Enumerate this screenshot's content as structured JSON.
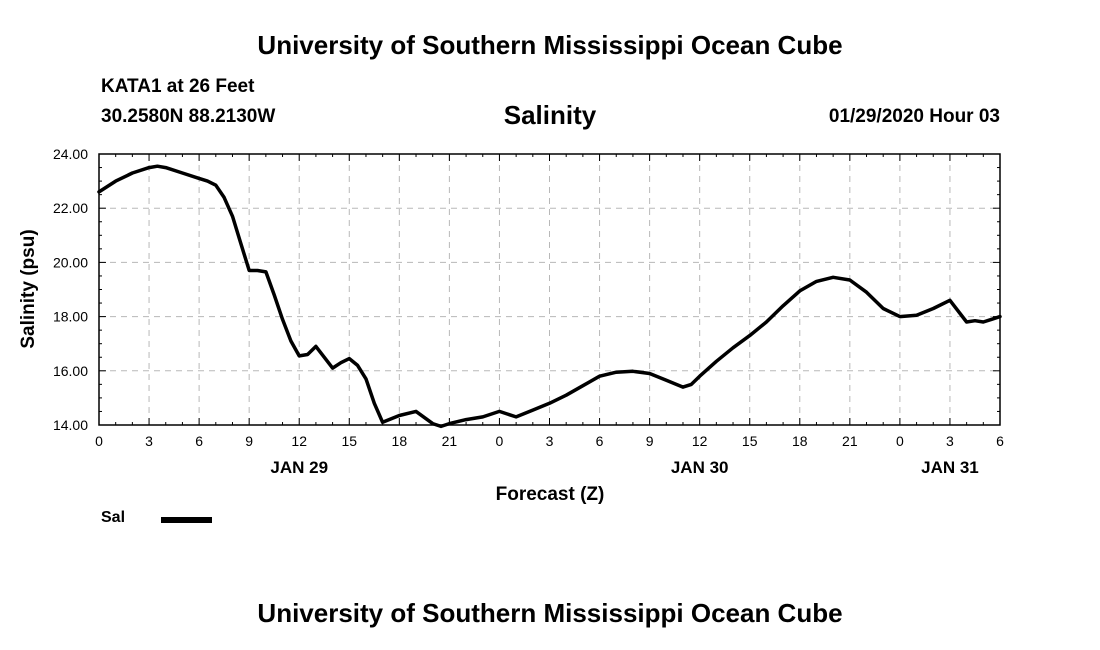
{
  "header": {
    "title": "University of Southern Mississippi Ocean Cube",
    "station": "KATA1 at 26 Feet",
    "coords": "30.2580N 88.2130W",
    "datetime": "01/29/2020 Hour 03"
  },
  "footer": {
    "title": "University of Southern Mississippi Ocean Cube"
  },
  "legend": {
    "label": "Sal",
    "color": "#000000"
  },
  "chart_data": {
    "type": "line",
    "title": "Salinity",
    "xlabel": "Forecast (Z)",
    "ylabel": "Salinity (psu)",
    "ylim": [
      14.0,
      24.0
    ],
    "xlim_hours": [
      0,
      54
    ],
    "grid": true,
    "yticks": [
      "14.00",
      "16.00",
      "18.00",
      "20.00",
      "22.00",
      "24.00"
    ],
    "xticks": [
      "0",
      "3",
      "6",
      "9",
      "12",
      "15",
      "18",
      "21",
      "0",
      "3",
      "6",
      "9",
      "12",
      "15",
      "18",
      "21",
      "0",
      "3",
      "6"
    ],
    "date_labels": [
      {
        "label": "JAN 29",
        "tick_index": 4
      },
      {
        "label": "JAN 30",
        "tick_index": 12
      },
      {
        "label": "JAN 31",
        "tick_index": 17
      }
    ],
    "series": [
      {
        "name": "Sal",
        "color": "#000000",
        "x_hours_from_jan28_00Z": [
          0,
          1,
          2,
          3,
          3.5,
          4,
          5,
          6,
          6.5,
          7,
          7.5,
          8,
          8.5,
          9,
          9.5,
          10,
          10.5,
          11,
          11.5,
          12,
          12.5,
          13,
          13.5,
          14,
          14.5,
          15,
          15.5,
          16,
          16.5,
          17,
          18,
          19,
          20,
          20.5,
          21,
          22,
          23,
          24,
          25,
          26,
          27,
          28,
          29,
          30,
          31,
          32,
          33,
          34,
          35,
          35.5,
          36,
          37,
          38,
          39,
          40,
          41,
          42,
          43,
          44,
          45,
          46,
          47,
          48,
          49,
          50,
          51,
          52,
          52.5,
          53,
          53.5,
          54
        ],
        "values": [
          22.6,
          23.0,
          23.3,
          23.5,
          23.55,
          23.5,
          23.3,
          23.1,
          23.0,
          22.85,
          22.4,
          21.7,
          20.7,
          19.7,
          19.7,
          19.65,
          18.8,
          17.9,
          17.1,
          16.55,
          16.6,
          16.9,
          16.5,
          16.1,
          16.3,
          16.45,
          16.2,
          15.7,
          14.8,
          14.1,
          14.35,
          14.5,
          14.05,
          13.95,
          14.05,
          14.2,
          14.3,
          14.5,
          14.3,
          14.55,
          14.8,
          15.1,
          15.45,
          15.8,
          15.95,
          15.98,
          15.9,
          15.65,
          15.4,
          15.5,
          15.8,
          16.35,
          16.85,
          17.3,
          17.8,
          18.4,
          18.95,
          19.3,
          19.45,
          19.35,
          18.9,
          18.3,
          18.0,
          18.05,
          18.3,
          18.6,
          17.8,
          17.85,
          17.8,
          17.9,
          18.0
        ]
      }
    ]
  }
}
